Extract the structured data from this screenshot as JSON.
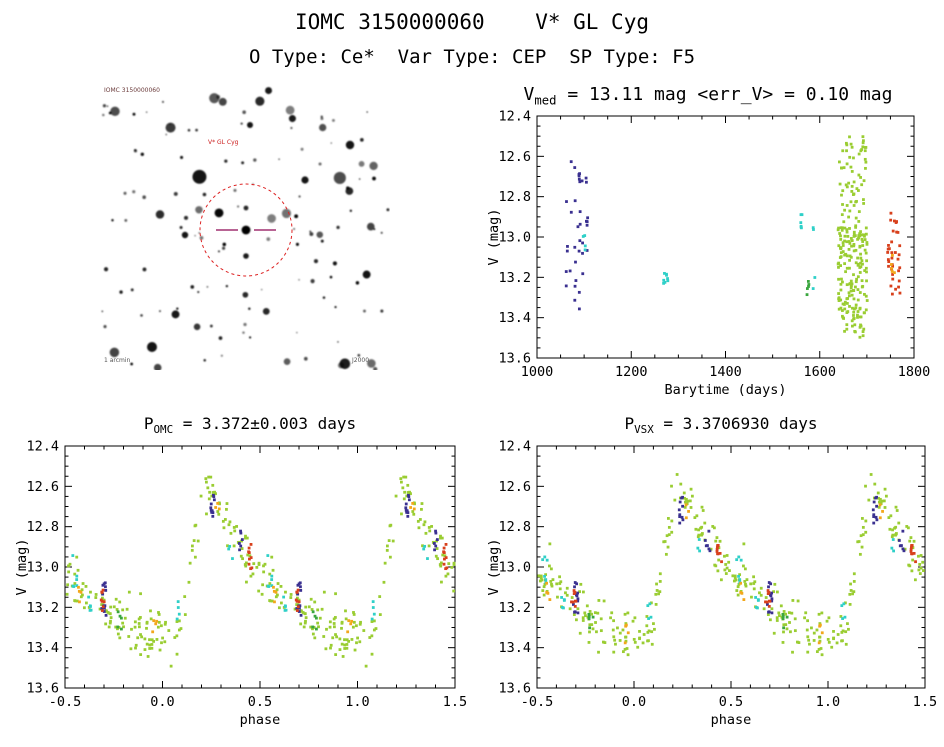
{
  "page": {
    "title": "IOMC 3150000060    V* GL Cyg",
    "subtitle": "O Type: Ce*  Var Type: CEP  SP Type: F5",
    "background": "#ffffff",
    "text_color": "#000000"
  },
  "finder_chart": {
    "target_label": "V* GL Cyg",
    "top_left_label": "IOMC 3150000060",
    "bottom_left_label": "1 arcmin",
    "bottom_right_label": "J2000",
    "circle_color": "#dd2222",
    "marker_color": "#a03070"
  },
  "colors": {
    "yellowgreen": "#9acd32",
    "purple": "#3a3090",
    "cyan": "#2fd0c8",
    "red": "#d8401c",
    "orange": "#f2a71b",
    "green": "#3aa63e"
  },
  "chart_data": [
    {
      "id": "lightcurve",
      "type": "scatter",
      "title_prefix": "V",
      "title_sub": "med",
      "title_rest": " = 13.11 mag <err_V> = 0.10 mag",
      "v_median_mag": 13.11,
      "v_err_mag": 0.1,
      "xlabel": "Barytime (days)",
      "ylabel": "V (mag)",
      "xlim": [
        1000,
        1800
      ],
      "ylim": [
        12.4,
        13.6
      ],
      "xticks": [
        1000,
        1200,
        1400,
        1600,
        1800
      ],
      "xtick_labels": [
        "1000",
        "1200",
        "1400",
        "1600",
        "1800"
      ],
      "yticks": [
        12.4,
        12.6,
        12.8,
        13.0,
        13.2,
        13.4,
        13.6
      ],
      "ytick_labels": [
        "12.4",
        "12.6",
        "12.8",
        "13.0",
        "13.2",
        "13.4",
        "13.6"
      ],
      "x_minor_step": 50,
      "y_minor_step": 0.05,
      "seed": 11,
      "clusters": [
        {
          "color": "purple",
          "x": [
            1060,
            1110
          ],
          "mag": [
            12.62,
            13.36
          ],
          "n": 38,
          "cols": 6
        },
        {
          "color": "cyan",
          "x": [
            1095,
            1105
          ],
          "mag": [
            12.95,
            13.1
          ],
          "n": 4,
          "cols": 2
        },
        {
          "color": "cyan",
          "x": [
            1267,
            1280
          ],
          "mag": [
            13.15,
            13.23
          ],
          "n": 8,
          "cols": 2
        },
        {
          "color": "cyan",
          "x": [
            1556,
            1564
          ],
          "mag": [
            12.88,
            13.06
          ],
          "n": 6,
          "cols": 1
        },
        {
          "color": "green",
          "x": [
            1570,
            1580
          ],
          "mag": [
            13.22,
            13.3
          ],
          "n": 5,
          "cols": 1
        },
        {
          "color": "cyan",
          "x": [
            1584,
            1592
          ],
          "mag": [
            12.92,
            13.3
          ],
          "n": 4,
          "cols": 1
        },
        {
          "color": "yellowgreen",
          "x": [
            1638,
            1702
          ],
          "mag": [
            12.95,
            13.42
          ],
          "n": 150,
          "cols": 14
        },
        {
          "color": "yellowgreen",
          "x": [
            1640,
            1700
          ],
          "mag": [
            12.5,
            13.0
          ],
          "n": 70,
          "cols": 12
        },
        {
          "color": "yellowgreen",
          "x": [
            1648,
            1695
          ],
          "mag": [
            13.3,
            13.5
          ],
          "n": 25,
          "cols": 8
        },
        {
          "color": "red",
          "x": [
            1742,
            1772
          ],
          "mag": [
            13.02,
            13.3
          ],
          "n": 28,
          "cols": 4
        },
        {
          "color": "red",
          "x": [
            1745,
            1768
          ],
          "mag": [
            12.88,
            13.05
          ],
          "n": 8,
          "cols": 3
        },
        {
          "color": "orange",
          "x": [
            1748,
            1764
          ],
          "mag": [
            12.95,
            13.18
          ],
          "n": 5,
          "cols": 2
        }
      ]
    },
    {
      "id": "phase_omc",
      "type": "scatter",
      "title_prefix": "P",
      "title_sub": "OMC",
      "title_rest": " = 3.372±0.003 days",
      "period_days": 3.372,
      "period_err_days": 0.003,
      "xlabel": "phase",
      "ylabel": "V (mag)",
      "xlim": [
        -0.5,
        1.5
      ],
      "ylim": [
        12.4,
        13.6
      ],
      "xticks": [
        -0.5,
        0.0,
        0.5,
        1.0,
        1.5
      ],
      "xtick_labels": [
        "-0.5",
        "0.0",
        "0.5",
        "1.0",
        "1.5"
      ],
      "yticks": [
        12.4,
        12.6,
        12.8,
        13.0,
        13.2,
        13.4,
        13.6
      ],
      "ytick_labels": [
        "12.4",
        "12.6",
        "12.8",
        "13.0",
        "13.2",
        "13.4",
        "13.6"
      ],
      "x_minor_step": 0.1,
      "y_minor_step": 0.05,
      "mean_curve": [
        [
          0.0,
          13.33
        ],
        [
          0.04,
          13.38
        ],
        [
          0.08,
          13.34
        ],
        [
          0.12,
          13.16
        ],
        [
          0.16,
          12.92
        ],
        [
          0.2,
          12.7
        ],
        [
          0.25,
          12.58
        ],
        [
          0.3,
          12.72
        ],
        [
          0.35,
          12.82
        ],
        [
          0.4,
          12.89
        ],
        [
          0.45,
          12.96
        ],
        [
          0.5,
          13.03
        ],
        [
          0.55,
          13.08
        ],
        [
          0.6,
          13.13
        ],
        [
          0.65,
          13.17
        ],
        [
          0.7,
          13.21
        ],
        [
          0.75,
          13.24
        ],
        [
          0.8,
          13.27
        ],
        [
          0.85,
          13.3
        ],
        [
          0.9,
          13.32
        ],
        [
          0.95,
          13.33
        ],
        [
          1.0,
          13.33
        ]
      ],
      "band": {
        "color": "yellowgreen",
        "n": 175,
        "sigma": 0.055,
        "seed": 7
      },
      "clusters": [
        {
          "color": "purple",
          "phase": 0.26,
          "mag": [
            12.62,
            12.8
          ],
          "n": 10
        },
        {
          "color": "purple",
          "phase": 0.4,
          "mag": [
            12.8,
            12.92
          ],
          "n": 6
        },
        {
          "color": "purple",
          "phase": 0.7,
          "mag": [
            13.06,
            13.24
          ],
          "n": 12
        },
        {
          "color": "red",
          "phase": 0.45,
          "mag": [
            12.88,
            13.02
          ],
          "n": 9
        },
        {
          "color": "red",
          "phase": 0.69,
          "mag": [
            13.1,
            13.22
          ],
          "n": 8
        },
        {
          "color": "cyan",
          "phase": 0.55,
          "mag": [
            12.94,
            13.1
          ],
          "n": 6
        },
        {
          "color": "cyan",
          "phase": 0.63,
          "mag": [
            13.14,
            13.24
          ],
          "n": 5
        },
        {
          "color": "cyan",
          "phase": 0.08,
          "mag": [
            13.16,
            13.26
          ],
          "n": 4
        },
        {
          "color": "cyan",
          "phase": 0.35,
          "mag": [
            12.86,
            12.96
          ],
          "n": 3
        },
        {
          "color": "orange",
          "phase": 0.57,
          "mag": [
            13.08,
            13.18
          ],
          "n": 4
        },
        {
          "color": "orange",
          "phase": 0.96,
          "mag": [
            13.26,
            13.38
          ],
          "n": 4
        },
        {
          "color": "orange",
          "phase": 0.28,
          "mag": [
            12.68,
            12.76
          ],
          "n": 3
        },
        {
          "color": "green",
          "phase": 0.78,
          "mag": [
            13.22,
            13.32
          ],
          "n": 5
        }
      ]
    },
    {
      "id": "phase_vsx",
      "type": "scatter",
      "title_prefix": "P",
      "title_sub": "VSX",
      "title_rest": " = 3.3706930 days",
      "period_days": 3.370693,
      "xlabel": "phase",
      "ylabel": "V (mag)",
      "xlim": [
        -0.5,
        1.5
      ],
      "ylim": [
        12.4,
        13.6
      ],
      "xticks": [
        -0.5,
        0.0,
        0.5,
        1.0,
        1.5
      ],
      "xtick_labels": [
        "-0.5",
        "0.0",
        "0.5",
        "1.0",
        "1.5"
      ],
      "yticks": [
        12.4,
        12.6,
        12.8,
        13.0,
        13.2,
        13.4,
        13.6
      ],
      "ytick_labels": [
        "12.4",
        "12.6",
        "12.8",
        "13.0",
        "13.2",
        "13.4",
        "13.6"
      ],
      "x_minor_step": 0.1,
      "y_minor_step": 0.05,
      "mean_curve": [
        [
          0.0,
          13.33
        ],
        [
          0.04,
          13.38
        ],
        [
          0.08,
          13.34
        ],
        [
          0.12,
          13.16
        ],
        [
          0.16,
          12.92
        ],
        [
          0.2,
          12.7
        ],
        [
          0.25,
          12.58
        ],
        [
          0.3,
          12.72
        ],
        [
          0.35,
          12.82
        ],
        [
          0.4,
          12.89
        ],
        [
          0.45,
          12.96
        ],
        [
          0.5,
          13.03
        ],
        [
          0.55,
          13.08
        ],
        [
          0.6,
          13.13
        ],
        [
          0.65,
          13.17
        ],
        [
          0.7,
          13.21
        ],
        [
          0.75,
          13.24
        ],
        [
          0.8,
          13.27
        ],
        [
          0.85,
          13.3
        ],
        [
          0.9,
          13.32
        ],
        [
          0.95,
          13.33
        ],
        [
          1.0,
          13.33
        ]
      ],
      "band": {
        "color": "yellowgreen",
        "n": 175,
        "sigma": 0.055,
        "seed": 13
      },
      "clusters": [
        {
          "color": "purple",
          "phase": 0.24,
          "mag": [
            12.62,
            12.8
          ],
          "n": 10
        },
        {
          "color": "purple",
          "phase": 0.38,
          "mag": [
            12.8,
            12.92
          ],
          "n": 6
        },
        {
          "color": "purple",
          "phase": 0.7,
          "mag": [
            13.06,
            13.24
          ],
          "n": 12
        },
        {
          "color": "red",
          "phase": 0.44,
          "mag": [
            12.88,
            13.02
          ],
          "n": 9
        },
        {
          "color": "red",
          "phase": 0.69,
          "mag": [
            13.1,
            13.22
          ],
          "n": 8
        },
        {
          "color": "cyan",
          "phase": 0.54,
          "mag": [
            12.94,
            13.1
          ],
          "n": 6
        },
        {
          "color": "cyan",
          "phase": 0.63,
          "mag": [
            13.14,
            13.24
          ],
          "n": 5
        },
        {
          "color": "cyan",
          "phase": 0.08,
          "mag": [
            13.16,
            13.26
          ],
          "n": 4
        },
        {
          "color": "cyan",
          "phase": 0.34,
          "mag": [
            12.86,
            12.96
          ],
          "n": 3
        },
        {
          "color": "orange",
          "phase": 0.56,
          "mag": [
            13.08,
            13.18
          ],
          "n": 4
        },
        {
          "color": "orange",
          "phase": 0.96,
          "mag": [
            13.26,
            13.38
          ],
          "n": 4
        },
        {
          "color": "orange",
          "phase": 0.27,
          "mag": [
            12.68,
            12.76
          ],
          "n": 3
        },
        {
          "color": "green",
          "phase": 0.78,
          "mag": [
            13.22,
            13.32
          ],
          "n": 5
        }
      ]
    }
  ]
}
